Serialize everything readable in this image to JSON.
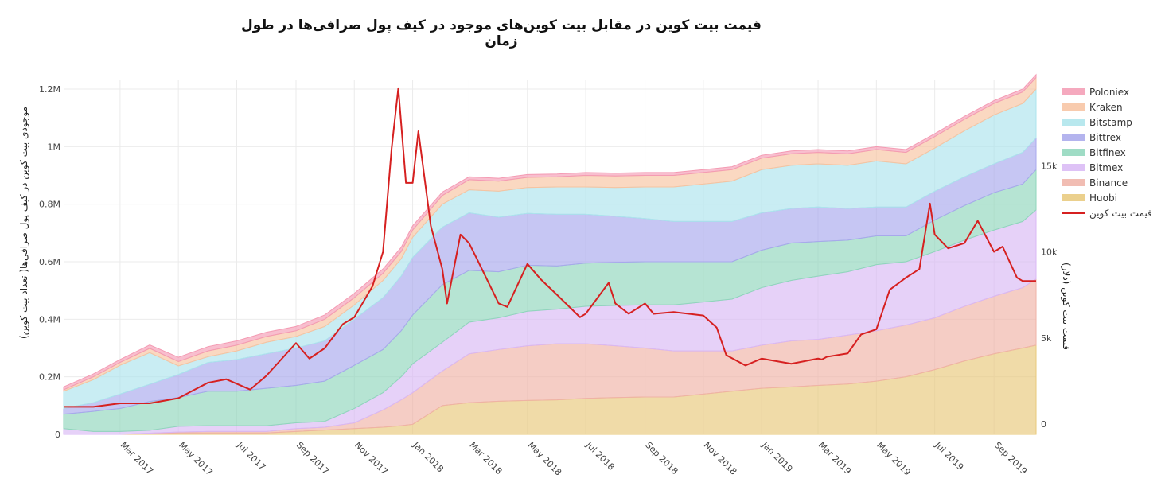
{
  "chart_data": {
    "type": "area",
    "title": "قیمت بیت کوین در مقابل بیت کوین‌های موجود در کیف پول صرافی‌ها در طول زمان",
    "ylabel_left": "موجودی بیت کوین در کیف پول صرافی‌ها( تعداد بیت کوین)",
    "ylabel_right": "قیمت بیت کوین (دلار)",
    "x_range": [
      "2017-01-01",
      "2019-10-15"
    ],
    "x_ticks": [
      "Mar 2017",
      "May 2017",
      "Jul 2017",
      "Sep 2017",
      "Nov 2017",
      "Jan 2018",
      "Mar 2018",
      "May 2018",
      "Jul 2018",
      "Sep 2018",
      "Nov 2018",
      "Jan 2019",
      "Mar 2019",
      "May 2019",
      "Jul 2019",
      "Sep 2019"
    ],
    "x_tick_dates": [
      "2017-03-01",
      "2017-05-01",
      "2017-07-01",
      "2017-09-01",
      "2017-11-01",
      "2018-01-01",
      "2018-03-01",
      "2018-05-01",
      "2018-07-01",
      "2018-09-01",
      "2018-11-01",
      "2019-01-01",
      "2019-03-01",
      "2019-05-01",
      "2019-07-01",
      "2019-09-01"
    ],
    "y_left_range": [
      0,
      1200000
    ],
    "y_left_ticks": [
      "0",
      "0.2M",
      "0.4M",
      "0.6M",
      "0.8M",
      "1M",
      "1.2M"
    ],
    "y_left_tick_values": [
      0,
      200000,
      400000,
      600000,
      800000,
      1000000,
      1200000
    ],
    "y_right_range": [
      -600,
      20000
    ],
    "y_right_ticks": [
      "0",
      "5k",
      "10k",
      "15k"
    ],
    "y_right_tick_values": [
      0,
      5000,
      10000,
      15000
    ],
    "grid": true,
    "legend_position": "right",
    "dates": [
      "2017-01-01",
      "2017-02-01",
      "2017-03-01",
      "2017-04-01",
      "2017-05-01",
      "2017-06-01",
      "2017-07-01",
      "2017-08-01",
      "2017-09-01",
      "2017-10-01",
      "2017-11-01",
      "2017-12-01",
      "2017-12-20",
      "2018-01-01",
      "2018-02-01",
      "2018-03-01",
      "2018-04-01",
      "2018-05-01",
      "2018-06-01",
      "2018-07-01",
      "2018-08-01",
      "2018-09-01",
      "2018-10-01",
      "2018-11-01",
      "2018-12-01",
      "2019-01-01",
      "2019-02-01",
      "2019-03-01",
      "2019-04-01",
      "2019-05-01",
      "2019-06-01",
      "2019-07-01",
      "2019-08-01",
      "2019-09-01",
      "2019-10-01",
      "2019-10-15"
    ],
    "series": [
      {
        "name": "Huobi",
        "color": "#e8c87a",
        "values": [
          0,
          0,
          0,
          2000,
          5000,
          5000,
          5000,
          5000,
          10000,
          15000,
          20000,
          25000,
          30000,
          35000,
          100000,
          110000,
          115000,
          118000,
          120000,
          125000,
          128000,
          130000,
          130000,
          140000,
          150000,
          160000,
          165000,
          170000,
          175000,
          185000,
          200000,
          225000,
          255000,
          280000,
          300000,
          310000
        ]
      },
      {
        "name": "Binance",
        "color": "#efb2a6",
        "values": [
          0,
          0,
          0,
          2000,
          3000,
          5000,
          5000,
          5000,
          10000,
          10000,
          20000,
          60000,
          90000,
          110000,
          120000,
          170000,
          180000,
          190000,
          195000,
          190000,
          180000,
          170000,
          160000,
          150000,
          140000,
          150000,
          160000,
          160000,
          170000,
          175000,
          180000,
          180000,
          190000,
          200000,
          210000,
          230000
        ]
      },
      {
        "name": "Bitmex",
        "color": "#d9b8f5",
        "values": [
          20000,
          10000,
          10000,
          10000,
          20000,
          20000,
          20000,
          20000,
          20000,
          20000,
          50000,
          60000,
          80000,
          100000,
          100000,
          110000,
          110000,
          120000,
          120000,
          130000,
          140000,
          150000,
          160000,
          170000,
          180000,
          200000,
          210000,
          220000,
          220000,
          230000,
          220000,
          230000,
          230000,
          230000,
          230000,
          240000
        ]
      },
      {
        "name": "Bitfinex",
        "color": "#8fd6bb",
        "values": [
          50000,
          70000,
          80000,
          100000,
          100000,
          120000,
          120000,
          130000,
          130000,
          140000,
          150000,
          150000,
          160000,
          170000,
          200000,
          180000,
          160000,
          160000,
          150000,
          150000,
          150000,
          150000,
          150000,
          140000,
          130000,
          130000,
          130000,
          120000,
          110000,
          100000,
          90000,
          110000,
          120000,
          130000,
          130000,
          140000
        ]
      },
      {
        "name": "Bittrex",
        "color": "#a8a8ec",
        "values": [
          20000,
          30000,
          50000,
          60000,
          80000,
          100000,
          110000,
          120000,
          130000,
          140000,
          160000,
          180000,
          190000,
          200000,
          200000,
          200000,
          190000,
          180000,
          180000,
          170000,
          160000,
          150000,
          140000,
          140000,
          140000,
          130000,
          120000,
          120000,
          110000,
          100000,
          100000,
          100000,
          100000,
          100000,
          110000,
          110000
        ]
      },
      {
        "name": "Bitstamp",
        "color": "#ace4ec",
        "values": [
          60000,
          80000,
          100000,
          110000,
          30000,
          20000,
          30000,
          40000,
          40000,
          50000,
          50000,
          60000,
          60000,
          70000,
          80000,
          80000,
          90000,
          90000,
          95000,
          95000,
          100000,
          110000,
          120000,
          130000,
          140000,
          150000,
          150000,
          150000,
          150000,
          160000,
          150000,
          150000,
          160000,
          170000,
          170000,
          170000
        ]
      },
      {
        "name": "Kraken",
        "color": "#f7c3a0",
        "values": [
          5000,
          10000,
          10000,
          15000,
          15000,
          20000,
          20000,
          20000,
          20000,
          25000,
          25000,
          25000,
          25000,
          25000,
          30000,
          35000,
          35000,
          35000,
          35000,
          40000,
          40000,
          40000,
          40000,
          40000,
          40000,
          40000,
          40000,
          40000,
          40000,
          40000,
          40000,
          40000,
          40000,
          40000,
          40000,
          40000
        ]
      },
      {
        "name": "Poloniex",
        "color": "#f49bb3",
        "values": [
          10000,
          10000,
          10000,
          12000,
          15000,
          15000,
          15000,
          15000,
          15000,
          15000,
          15000,
          15000,
          15000,
          15000,
          12000,
          10000,
          10000,
          10000,
          10000,
          10000,
          10000,
          10000,
          10000,
          10000,
          10000,
          10000,
          10000,
          10000,
          10000,
          10000,
          10000,
          10000,
          10000,
          10000,
          10000,
          10000
        ]
      }
    ],
    "price": {
      "name": "قیمت بیت کوین",
      "color": "#d62020",
      "dates": [
        "2017-01-01",
        "2017-02-01",
        "2017-03-01",
        "2017-04-01",
        "2017-05-01",
        "2017-06-01",
        "2017-06-20",
        "2017-07-15",
        "2017-08-01",
        "2017-09-01",
        "2017-09-15",
        "2017-10-01",
        "2017-10-20",
        "2017-11-01",
        "2017-11-20",
        "2017-12-01",
        "2017-12-10",
        "2017-12-17",
        "2017-12-25",
        "2018-01-01",
        "2018-01-07",
        "2018-01-20",
        "2018-02-01",
        "2018-02-06",
        "2018-02-20",
        "2018-03-01",
        "2018-03-10",
        "2018-04-01",
        "2018-04-10",
        "2018-05-01",
        "2018-05-15",
        "2018-06-01",
        "2018-06-25",
        "2018-07-01",
        "2018-07-25",
        "2018-08-01",
        "2018-08-15",
        "2018-09-01",
        "2018-09-10",
        "2018-10-01",
        "2018-11-01",
        "2018-11-15",
        "2018-11-25",
        "2018-12-15",
        "2019-01-01",
        "2019-02-01",
        "2019-03-01",
        "2019-03-05",
        "2019-03-10",
        "2019-04-01",
        "2019-04-15",
        "2019-05-01",
        "2019-05-15",
        "2019-06-01",
        "2019-06-15",
        "2019-06-26",
        "2019-07-01",
        "2019-07-15",
        "2019-08-01",
        "2019-08-15",
        "2019-09-01",
        "2019-09-10",
        "2019-09-25",
        "2019-10-01",
        "2019-10-15"
      ],
      "values": [
        1000,
        1000,
        1200,
        1200,
        1500,
        2400,
        2600,
        2000,
        2800,
        4700,
        3800,
        4400,
        5800,
        6200,
        8000,
        10000,
        16000,
        19500,
        14000,
        14000,
        17000,
        11500,
        9000,
        7000,
        11000,
        10500,
        9500,
        7000,
        6800,
        9300,
        8400,
        7500,
        6200,
        6400,
        8200,
        7000,
        6400,
        7000,
        6400,
        6500,
        6300,
        5600,
        4000,
        3400,
        3800,
        3500,
        3800,
        3750,
        3900,
        4100,
        5200,
        5500,
        7800,
        8500,
        9000,
        12800,
        11000,
        10200,
        10500,
        11800,
        10000,
        10300,
        8500,
        8300,
        8300
      ]
    }
  }
}
